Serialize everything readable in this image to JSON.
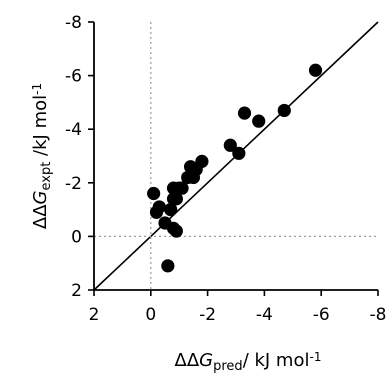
{
  "chart_data": {
    "type": "scatter",
    "xlabel": {
      "prefix": "ΔΔ",
      "var": "G",
      "sub": "pred",
      "suffix": "/ kJ mol",
      "sup": "-1"
    },
    "ylabel": {
      "prefix": "ΔΔ",
      "var": "G",
      "sub": "expt",
      "suffix": " /kJ mol",
      "sup": "-1"
    },
    "xlim": [
      2,
      -8
    ],
    "ylim": [
      2,
      -8
    ],
    "x_ticks": [
      2,
      0,
      -2,
      -4,
      -6,
      -8
    ],
    "y_ticks": [
      -8,
      -6,
      -4,
      -2,
      0,
      2
    ],
    "x_tick_labels": [
      "2",
      "0",
      "-2",
      "-4",
      "-6",
      "-8"
    ],
    "y_tick_labels": [
      "-8",
      "-6",
      "-4",
      "-2",
      "0",
      "2"
    ],
    "reference_lines": [
      {
        "type": "diagonal",
        "style": "solid",
        "color": "#000000"
      },
      {
        "type": "vertical",
        "x": 0,
        "style": "dotted",
        "color": "#999999"
      },
      {
        "type": "horizontal",
        "y": 0,
        "style": "dotted",
        "color": "#999999"
      }
    ],
    "points": [
      {
        "x": -5.8,
        "y": -6.2
      },
      {
        "x": -4.7,
        "y": -4.7
      },
      {
        "x": -3.8,
        "y": -4.3
      },
      {
        "x": -3.3,
        "y": -4.6
      },
      {
        "x": -3.1,
        "y": -3.1
      },
      {
        "x": -2.8,
        "y": -3.4
      },
      {
        "x": -1.8,
        "y": -2.8
      },
      {
        "x": -1.6,
        "y": -2.5
      },
      {
        "x": -1.5,
        "y": -2.2
      },
      {
        "x": -1.4,
        "y": -2.6
      },
      {
        "x": -1.3,
        "y": -2.2
      },
      {
        "x": -1.1,
        "y": -1.8
      },
      {
        "x": -1.0,
        "y": -1.8
      },
      {
        "x": -0.9,
        "y": -1.4
      },
      {
        "x": -0.8,
        "y": -1.8
      },
      {
        "x": -0.8,
        "y": -1.4
      },
      {
        "x": -0.7,
        "y": -1.0
      },
      {
        "x": -0.9,
        "y": -0.2
      },
      {
        "x": -0.8,
        "y": -0.3
      },
      {
        "x": -0.5,
        "y": -0.5
      },
      {
        "x": -0.3,
        "y": -1.1
      },
      {
        "x": -0.2,
        "y": -0.9
      },
      {
        "x": -0.1,
        "y": -1.6
      },
      {
        "x": -0.6,
        "y": 1.1
      }
    ],
    "marker_color": "#000000",
    "grid": false,
    "legend": "none"
  }
}
